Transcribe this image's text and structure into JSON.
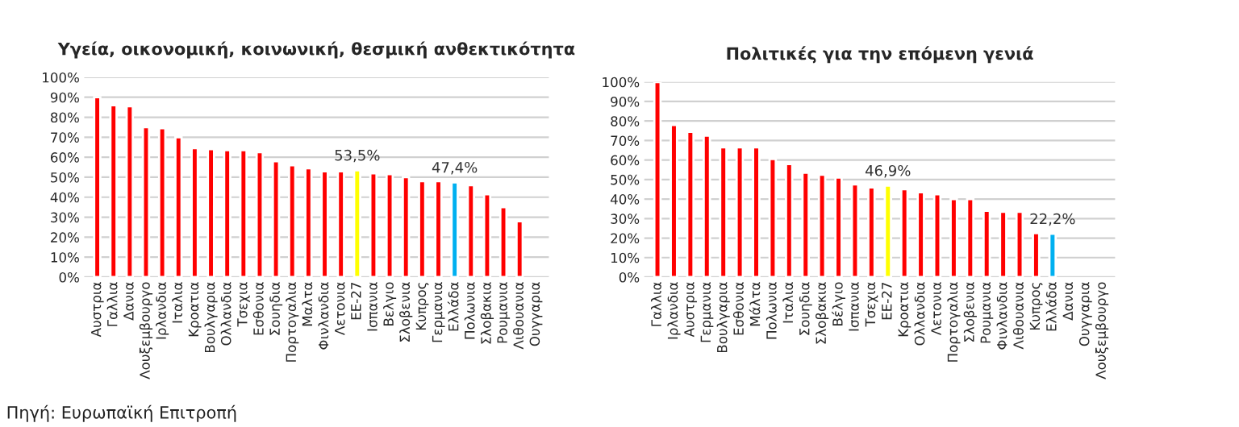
{
  "chart_data": [
    {
      "type": "bar",
      "title": "Υγεία, οικονομική, κοινωνική, θεσμική ανθεκτικότητα",
      "categories": [
        "Αυστρια",
        "Γαλλια",
        "Δανια",
        "Λουξεμβουργο",
        "Ιρλανδια",
        "Ιταλια",
        "Κροατια",
        "Βουλγαρια",
        "Ολλανδια",
        "Τσεχια",
        "Εσθονια",
        "Σουηδια",
        "Πορτογαλια",
        "Μαλτα",
        "Φινλανδια",
        "Λετονια",
        "ΕΕ-27",
        "Ισπανια",
        "Βελγιο",
        "Σλοβενια",
        "Κυπρος",
        "Γερμανια",
        "Ελλάδα",
        "Πολωνια",
        "Σλοβακια",
        "Ρουμανια",
        "Λιθουανια",
        "Ουγγαρια"
      ],
      "values": [
        90,
        86,
        85.5,
        75,
        74.5,
        70,
        64.5,
        64,
        63.5,
        63.5,
        62.5,
        58,
        56,
        54.5,
        53,
        53,
        53.5,
        52,
        51.5,
        50,
        48,
        48,
        47.4,
        46,
        41.5,
        35,
        28,
        null
      ],
      "colors": [
        "#ff0000",
        "#ff0000",
        "#ff0000",
        "#ff0000",
        "#ff0000",
        "#ff0000",
        "#ff0000",
        "#ff0000",
        "#ff0000",
        "#ff0000",
        "#ff0000",
        "#ff0000",
        "#ff0000",
        "#ff0000",
        "#ff0000",
        "#ff0000",
        "#ffff00",
        "#ff0000",
        "#ff0000",
        "#ff0000",
        "#ff0000",
        "#ff0000",
        "#00b0f0",
        "#ff0000",
        "#ff0000",
        "#ff0000",
        "#ff0000",
        "#ff0000"
      ],
      "value_labels": [
        null,
        null,
        null,
        null,
        null,
        null,
        null,
        null,
        null,
        null,
        null,
        null,
        null,
        null,
        null,
        null,
        "53,5%",
        null,
        null,
        null,
        null,
        null,
        "47,4%",
        null,
        null,
        null,
        null,
        null
      ],
      "ylim": [
        0,
        100
      ],
      "yticks": [
        {
          "value": 0,
          "label": "0%"
        },
        {
          "value": 10,
          "label": "10%"
        },
        {
          "value": 20,
          "label": "20%"
        },
        {
          "value": 30,
          "label": "30%"
        },
        {
          "value": 40,
          "label": "40%"
        },
        {
          "value": 50,
          "label": "50%"
        },
        {
          "value": 60,
          "label": "60%"
        },
        {
          "value": 70,
          "label": "70%"
        },
        {
          "value": 80,
          "label": "80%"
        },
        {
          "value": 90,
          "label": "90%"
        },
        {
          "value": 100,
          "label": "100%"
        }
      ],
      "grid": "y",
      "annotations": [
        "Πηγή: Ευρωπαϊκή Επιτροπή"
      ]
    },
    {
      "type": "bar",
      "title": "Πολιτικές για την επόμενη γενιά",
      "categories": [
        "Γαλλια",
        "Ιρλανδια",
        "Αυστρια",
        "Γερμανια",
        "Βουλγαρια",
        "Εσθονια",
        "Μάλτα",
        "Πολωνια",
        "Ιταλια",
        "Σουηδια",
        "Σλοβακια",
        "Βέλγιο",
        "Ισπανια",
        "Τσεχια",
        "ΕΕ-27",
        "Κροατια",
        "Ολλανδια",
        "Λετονια",
        "Πορτογαλια",
        "Σλοβενια",
        "Ρουμανια",
        "Φινλανδια",
        "Λιθουανια",
        "Κυπρος",
        "Ελλάδα",
        "Δανια",
        "Ουγγαρια",
        "Λουξεμβουργο"
      ],
      "values": [
        100,
        78,
        74.5,
        72.5,
        66.5,
        66.5,
        66.5,
        60.5,
        58,
        53.5,
        52.5,
        51,
        47.5,
        46,
        46.9,
        45,
        43.5,
        42.5,
        40,
        40,
        34,
        33.5,
        33.5,
        22.5,
        22.2,
        null,
        null,
        null
      ],
      "colors": [
        "#ff0000",
        "#ff0000",
        "#ff0000",
        "#ff0000",
        "#ff0000",
        "#ff0000",
        "#ff0000",
        "#ff0000",
        "#ff0000",
        "#ff0000",
        "#ff0000",
        "#ff0000",
        "#ff0000",
        "#ff0000",
        "#ffff00",
        "#ff0000",
        "#ff0000",
        "#ff0000",
        "#ff0000",
        "#ff0000",
        "#ff0000",
        "#ff0000",
        "#ff0000",
        "#ff0000",
        "#00b0f0",
        "#ff0000",
        "#ff0000",
        "#ff0000"
      ],
      "value_labels": [
        null,
        null,
        null,
        null,
        null,
        null,
        null,
        null,
        null,
        null,
        null,
        null,
        null,
        null,
        "46,9%",
        null,
        null,
        null,
        null,
        null,
        null,
        null,
        null,
        null,
        "22,2%",
        null,
        null,
        null
      ],
      "ylim": [
        0,
        100
      ],
      "yticks": [
        {
          "value": 0,
          "label": "0%"
        },
        {
          "value": 10,
          "label": "10%"
        },
        {
          "value": 20,
          "label": "20%"
        },
        {
          "value": 30,
          "label": "30%"
        },
        {
          "value": 40,
          "label": "40%"
        },
        {
          "value": 50,
          "label": "50%"
        },
        {
          "value": 60,
          "label": "60%"
        },
        {
          "value": 70,
          "label": "70%"
        },
        {
          "value": 80,
          "label": "80%"
        },
        {
          "value": 90,
          "label": "90%"
        },
        {
          "value": 100,
          "label": "100%"
        }
      ],
      "grid": "y"
    }
  ]
}
